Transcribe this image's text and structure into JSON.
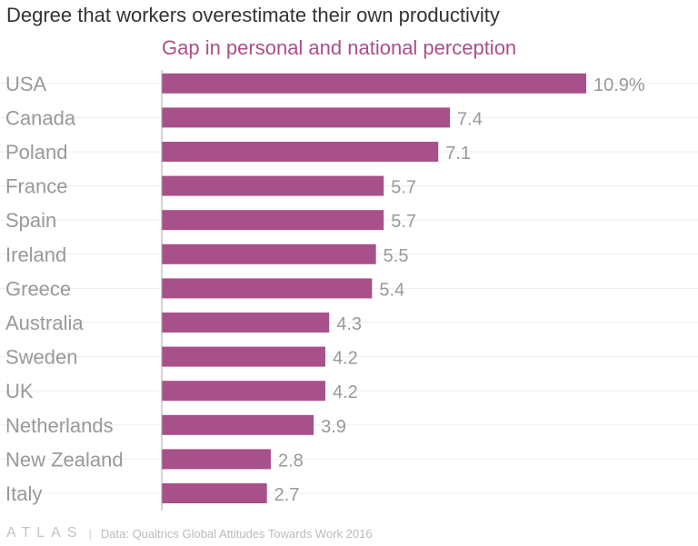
{
  "chart_data": {
    "type": "bar",
    "orientation": "horizontal",
    "title": "Degree that workers overestimate their own productivity",
    "subtitle": "Gap in personal and national perception",
    "categories": [
      "USA",
      "Canada",
      "Poland",
      "France",
      "Spain",
      "Ireland",
      "Greece",
      "Australia",
      "Sweden",
      "UK",
      "Netherlands",
      "New Zealand",
      "Italy"
    ],
    "values": [
      10.9,
      7.4,
      7.1,
      5.7,
      5.7,
      5.5,
      5.4,
      4.3,
      4.2,
      4.2,
      3.9,
      2.8,
      2.7
    ],
    "value_labels": [
      "10.9%",
      "7.4",
      "7.1",
      "5.7",
      "5.7",
      "5.5",
      "5.4",
      "4.3",
      "4.2",
      "4.2",
      "3.9",
      "2.8",
      "2.7"
    ],
    "xlim": [
      0,
      11
    ],
    "grid": true,
    "bar_color": "#a8508a"
  },
  "footer": {
    "logo": "ATLAS",
    "separator": "|",
    "source": "Data: Qualtrics Global Attitudes Towards Work 2016"
  }
}
